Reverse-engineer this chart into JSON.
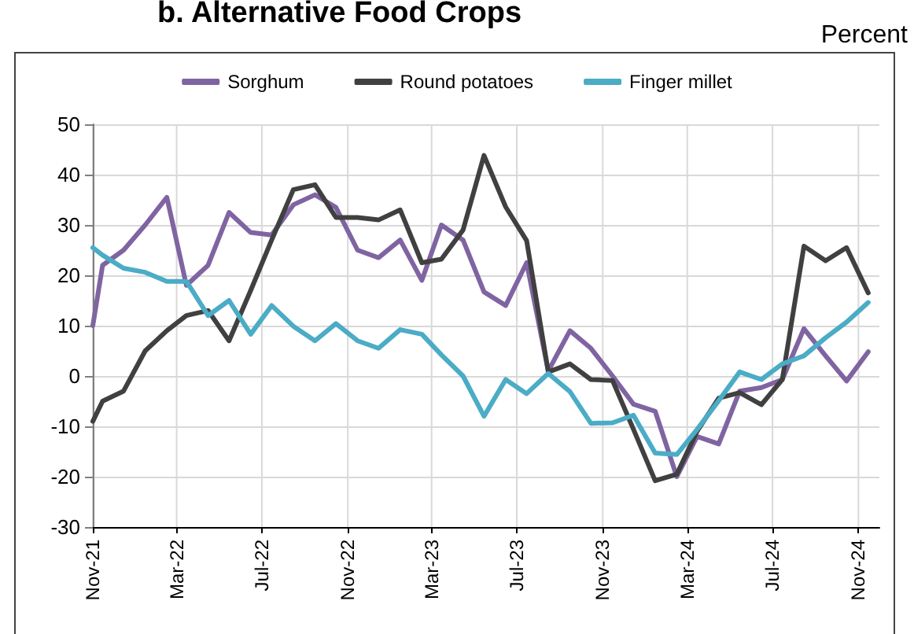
{
  "chart_data": {
    "type": "line",
    "title": "b. Alternative Food Crops",
    "ylabel": "Percent",
    "x": [
      "2021-11-01",
      "2021-11-15",
      "2021-12-15",
      "2022-01-15",
      "2022-02-15",
      "2022-03-15",
      "2022-04-15",
      "2022-05-15",
      "2022-06-15",
      "2022-07-15",
      "2022-08-15",
      "2022-09-15",
      "2022-10-15",
      "2022-11-15",
      "2022-12-15",
      "2023-01-15",
      "2023-02-15",
      "2023-03-15",
      "2023-04-15",
      "2023-05-15",
      "2023-06-15",
      "2023-07-15",
      "2023-08-15",
      "2023-09-15",
      "2023-10-15",
      "2023-11-15",
      "2023-12-15",
      "2024-01-15",
      "2024-02-15",
      "2024-03-15",
      "2024-04-15",
      "2024-05-15",
      "2024-06-15",
      "2024-07-15",
      "2024-08-15",
      "2024-09-15",
      "2024-10-15",
      "2024-11-15"
    ],
    "series": [
      {
        "name": "Sorghum",
        "color": "#8064a2",
        "values": [
          10,
          22,
          25,
          30,
          35.5,
          18,
          22,
          32.5,
          28.5,
          28,
          34,
          36,
          33.5,
          25,
          23.5,
          27,
          19,
          30,
          27,
          16.7,
          14,
          22.5,
          1,
          9,
          5.5,
          0,
          -5.6,
          -7,
          -20,
          -12,
          -13.5,
          -3,
          -2.3,
          -0.7,
          9.4,
          4,
          -1,
          4.8
        ]
      },
      {
        "name": "Round potatoes",
        "color": "#404040",
        "values": [
          -9,
          -5,
          -3,
          5,
          9,
          12,
          13,
          7,
          17,
          27,
          37,
          38,
          31.5,
          31.5,
          31,
          33,
          22.5,
          23.2,
          29,
          43.8,
          33.6,
          26.9,
          0.8,
          2.4,
          -0.7,
          -0.9,
          -10.6,
          -20.8,
          -19.5,
          -11,
          -4.4,
          -3.3,
          -5.7,
          -0.7,
          25.8,
          22.9,
          25.5,
          16.5
        ]
      },
      {
        "name": "Finger millet",
        "color": "#4bacc6",
        "values": [
          25.5,
          24,
          21.4,
          20.6,
          18.8,
          18.8,
          12,
          15,
          8.3,
          14,
          9.9,
          7,
          10.4,
          7,
          5.5,
          9.2,
          8.3,
          4.2,
          0,
          -8,
          -0.7,
          -3.5,
          0.5,
          -3.1,
          -9.4,
          -9.3,
          -7.8,
          -15.3,
          -15.6,
          -10.6,
          -4.9,
          0.8,
          -0.7,
          2.4,
          4,
          7.6,
          10.7,
          14.6
        ]
      }
    ],
    "xlim": [
      "2021-11-01",
      "2024-12-01"
    ],
    "xticks": [
      {
        "value": "2021-11-01",
        "label": "Nov-21"
      },
      {
        "value": "2022-03-01",
        "label": "Mar-22"
      },
      {
        "value": "2022-07-01",
        "label": "Jul-22"
      },
      {
        "value": "2022-11-01",
        "label": "Nov-22"
      },
      {
        "value": "2023-03-01",
        "label": "Mar-23"
      },
      {
        "value": "2023-07-01",
        "label": "Jul-23"
      },
      {
        "value": "2023-11-01",
        "label": "Nov-23"
      },
      {
        "value": "2024-03-01",
        "label": "Mar-24"
      },
      {
        "value": "2024-07-01",
        "label": "Jul-24"
      },
      {
        "value": "2024-11-01",
        "label": "Nov-24"
      }
    ],
    "ylim": [
      -30,
      50
    ],
    "yticks": [
      -30,
      -20,
      -10,
      0,
      10,
      20,
      30,
      40,
      50
    ],
    "grid": true,
    "legend": "top",
    "marker": "none",
    "line_style": "solid"
  }
}
